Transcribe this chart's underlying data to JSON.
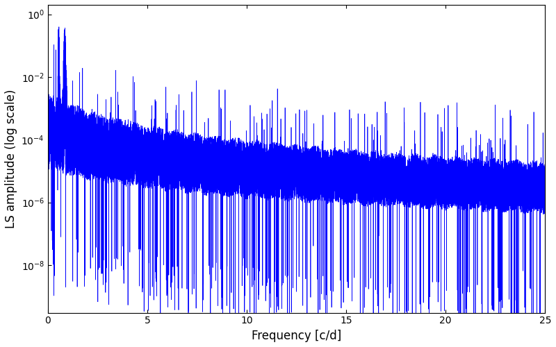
{
  "title": "",
  "xlabel": "Frequency [c/d]",
  "ylabel": "LS amplitude (log scale)",
  "xlim": [
    0,
    25
  ],
  "ylim": [
    3e-10,
    2.0
  ],
  "line_color": "#0000ff",
  "line_width": 0.5,
  "background_color": "#ffffff",
  "figsize": [
    8.0,
    5.0
  ],
  "dpi": 100,
  "seed": 12345,
  "n_points": 15000,
  "freq_max": 25.0
}
